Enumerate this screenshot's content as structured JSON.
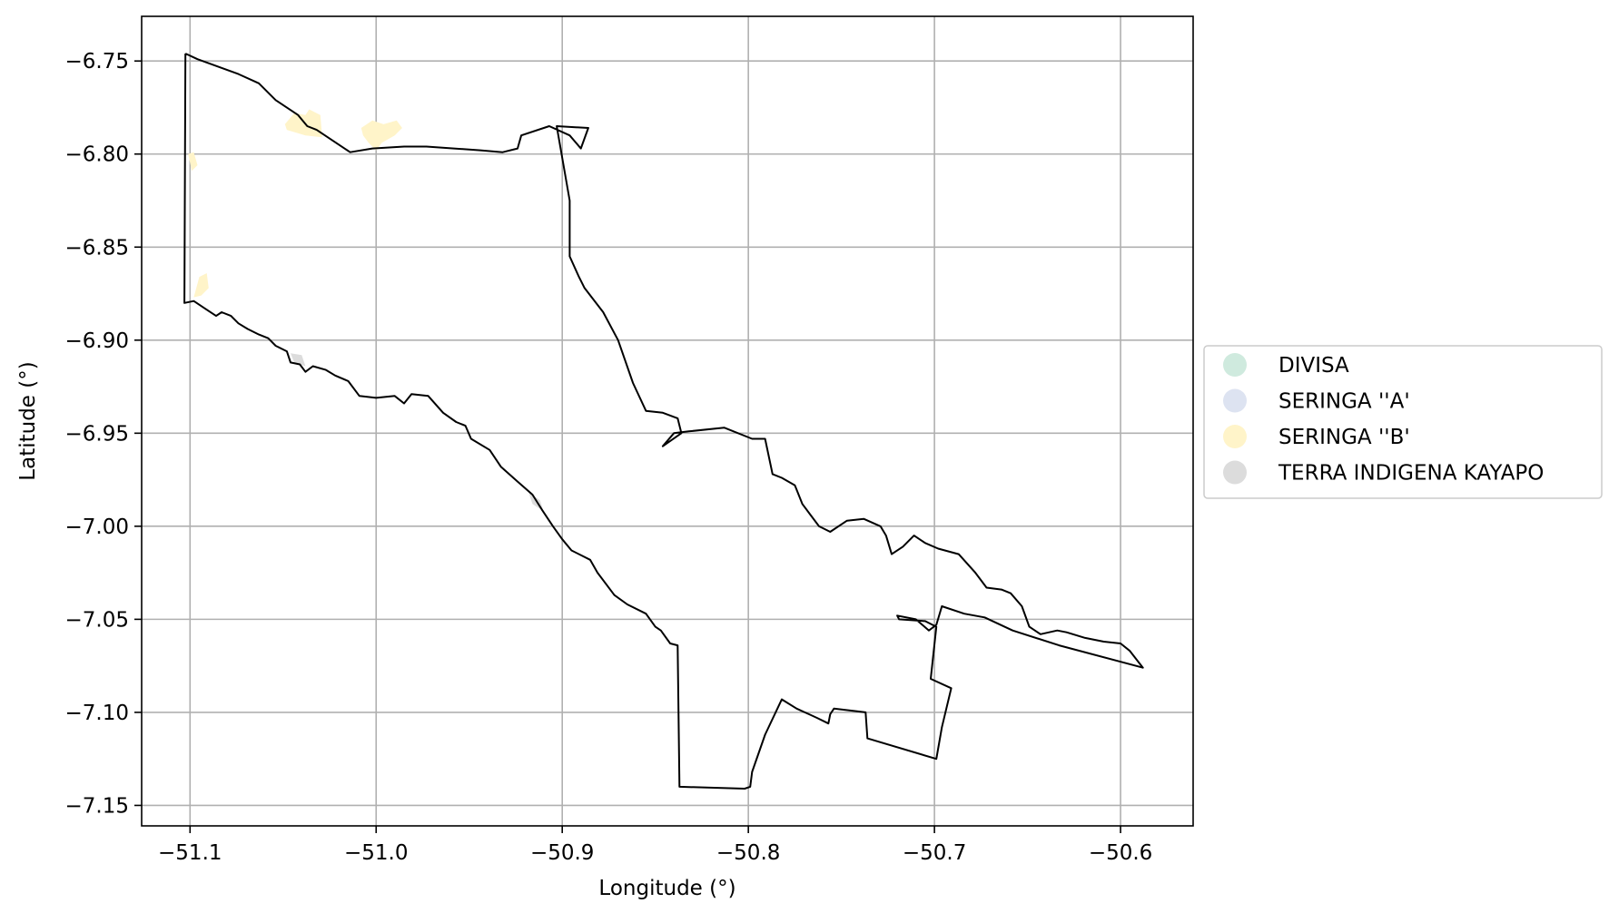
{
  "chart_data": {
    "type": "map",
    "xlabel": "Longitude (°)",
    "ylabel": "Latitude (°)",
    "xlim": [
      -51.126,
      -50.561
    ],
    "ylim": [
      -7.161,
      -6.726
    ],
    "grid": true,
    "legend_placement": "right",
    "x_ticks": [
      -51.1,
      -51.0,
      -50.9,
      -50.8,
      -50.7,
      -50.6
    ],
    "x_tick_labels": [
      "−51.1",
      "−51.0",
      "−50.9",
      "−50.8",
      "−50.7",
      "−50.6"
    ],
    "y_ticks": [
      -6.75,
      -6.8,
      -6.85,
      -6.9,
      -6.95,
      -7.0,
      -7.05,
      -7.1,
      -7.15
    ],
    "y_tick_labels": [
      "−6.75",
      "−6.80",
      "−6.85",
      "−6.90",
      "−6.95",
      "−7.00",
      "−7.05",
      "−7.10",
      "−7.15"
    ],
    "legend": [
      {
        "label": "DIVISA",
        "color": "#cfeade"
      },
      {
        "label": "SERINGA ''A'",
        "color": "#dde3f1"
      },
      {
        "label": "SERINGA ''B'",
        "color": "#fff4c9"
      },
      {
        "label": "TERRA INDIGENA KAYAPO",
        "color": "#dcdcdc"
      }
    ],
    "boundary": {
      "color": "#000000",
      "points": [
        [
          -51.1025,
          -6.746
        ],
        [
          -51.096,
          -6.749
        ],
        [
          -51.074,
          -6.757
        ],
        [
          -51.063,
          -6.762
        ],
        [
          -51.054,
          -6.771
        ],
        [
          -51.042,
          -6.779
        ],
        [
          -51.037,
          -6.785
        ],
        [
          -51.032,
          -6.787
        ],
        [
          -51.014,
          -6.799
        ],
        [
          -51.002,
          -6.797
        ],
        [
          -50.985,
          -6.796
        ],
        [
          -50.973,
          -6.796
        ],
        [
          -50.944,
          -6.798
        ],
        [
          -50.932,
          -6.799
        ],
        [
          -50.924,
          -6.797
        ],
        [
          -50.922,
          -6.79
        ],
        [
          -50.907,
          -6.785
        ],
        [
          -50.896,
          -6.79
        ],
        [
          -50.89,
          -6.797
        ],
        [
          -50.886,
          -6.786
        ],
        [
          -50.903,
          -6.785
        ],
        [
          -50.896,
          -6.825
        ],
        [
          -50.896,
          -6.855
        ],
        [
          -50.891,
          -6.866
        ],
        [
          -50.888,
          -6.872
        ],
        [
          -50.878,
          -6.885
        ],
        [
          -50.87,
          -6.9
        ],
        [
          -50.862,
          -6.923
        ],
        [
          -50.855,
          -6.938
        ],
        [
          -50.846,
          -6.939
        ],
        [
          -50.838,
          -6.942
        ],
        [
          -50.836,
          -6.95
        ],
        [
          -50.846,
          -6.957
        ],
        [
          -50.84,
          -6.95
        ],
        [
          -50.832,
          -6.949
        ],
        [
          -50.813,
          -6.947
        ],
        [
          -50.798,
          -6.953
        ],
        [
          -50.791,
          -6.953
        ],
        [
          -50.787,
          -6.972
        ],
        [
          -50.782,
          -6.974
        ],
        [
          -50.775,
          -6.978
        ],
        [
          -50.771,
          -6.988
        ],
        [
          -50.762,
          -7.0
        ],
        [
          -50.756,
          -7.003
        ],
        [
          -50.747,
          -6.997
        ],
        [
          -50.738,
          -6.996
        ],
        [
          -50.729,
          -7.0
        ],
        [
          -50.726,
          -7.005
        ],
        [
          -50.723,
          -7.015
        ],
        [
          -50.717,
          -7.011
        ],
        [
          -50.711,
          -7.005
        ],
        [
          -50.705,
          -7.009
        ],
        [
          -50.698,
          -7.012
        ],
        [
          -50.687,
          -7.015
        ],
        [
          -50.678,
          -7.025
        ],
        [
          -50.672,
          -7.033
        ],
        [
          -50.664,
          -7.034
        ],
        [
          -50.659,
          -7.036
        ],
        [
          -50.653,
          -7.043
        ],
        [
          -50.649,
          -7.054
        ],
        [
          -50.643,
          -7.058
        ],
        [
          -50.634,
          -7.056
        ],
        [
          -50.629,
          -7.057
        ],
        [
          -50.619,
          -7.06
        ],
        [
          -50.609,
          -7.062
        ],
        [
          -50.6,
          -7.063
        ],
        [
          -50.595,
          -7.067
        ],
        [
          -50.588,
          -7.076
        ],
        [
          -50.633,
          -7.064
        ],
        [
          -50.658,
          -7.056
        ],
        [
          -50.673,
          -7.049
        ],
        [
          -50.684,
          -7.047
        ],
        [
          -50.696,
          -7.043
        ],
        [
          -50.699,
          -7.053
        ],
        [
          -50.703,
          -7.056
        ],
        [
          -50.71,
          -7.05
        ],
        [
          -50.72,
          -7.048
        ],
        [
          -50.719,
          -7.05
        ],
        [
          -50.705,
          -7.051
        ],
        [
          -50.699,
          -7.054
        ],
        [
          -50.702,
          -7.082
        ],
        [
          -50.691,
          -7.087
        ],
        [
          -50.696,
          -7.108
        ],
        [
          -50.699,
          -7.125
        ],
        [
          -50.736,
          -7.114
        ],
        [
          -50.737,
          -7.1
        ],
        [
          -50.754,
          -7.098
        ],
        [
          -50.756,
          -7.101
        ],
        [
          -50.757,
          -7.106
        ],
        [
          -50.763,
          -7.103
        ],
        [
          -50.774,
          -7.098
        ],
        [
          -50.782,
          -7.093
        ],
        [
          -50.791,
          -7.112
        ],
        [
          -50.798,
          -7.132
        ],
        [
          -50.799,
          -7.14
        ],
        [
          -50.802,
          -7.141
        ],
        [
          -50.837,
          -7.14
        ],
        [
          -50.838,
          -7.064
        ],
        [
          -50.842,
          -7.063
        ],
        [
          -50.847,
          -7.056
        ],
        [
          -50.85,
          -7.054
        ],
        [
          -50.855,
          -7.047
        ],
        [
          -50.865,
          -7.042
        ],
        [
          -50.872,
          -7.037
        ],
        [
          -50.881,
          -7.025
        ],
        [
          -50.885,
          -7.018
        ],
        [
          -50.895,
          -7.013
        ],
        [
          -50.9,
          -7.007
        ],
        [
          -50.905,
          -7.0
        ],
        [
          -50.911,
          -6.991
        ],
        [
          -50.916,
          -6.983
        ],
        [
          -50.924,
          -6.976
        ],
        [
          -50.933,
          -6.968
        ],
        [
          -50.939,
          -6.959
        ],
        [
          -50.949,
          -6.953
        ],
        [
          -50.952,
          -6.946
        ],
        [
          -50.957,
          -6.944
        ],
        [
          -50.964,
          -6.939
        ],
        [
          -50.972,
          -6.93
        ],
        [
          -50.981,
          -6.929
        ],
        [
          -50.985,
          -6.934
        ],
        [
          -50.99,
          -6.93
        ],
        [
          -51.0,
          -6.931
        ],
        [
          -51.009,
          -6.93
        ],
        [
          -51.015,
          -6.922
        ],
        [
          -51.022,
          -6.919
        ],
        [
          -51.027,
          -6.916
        ],
        [
          -51.034,
          -6.914
        ],
        [
          -51.038,
          -6.917
        ],
        [
          -51.041,
          -6.913
        ],
        [
          -51.046,
          -6.912
        ],
        [
          -51.048,
          -6.906
        ],
        [
          -51.054,
          -6.903
        ],
        [
          -51.058,
          -6.899
        ],
        [
          -51.063,
          -6.897
        ],
        [
          -51.069,
          -6.894
        ],
        [
          -51.074,
          -6.891
        ],
        [
          -51.078,
          -6.887
        ],
        [
          -51.083,
          -6.885
        ],
        [
          -51.086,
          -6.887
        ],
        [
          -51.092,
          -6.883
        ],
        [
          -51.098,
          -6.879
        ],
        [
          -51.103,
          -6.88
        ],
        [
          -51.1025,
          -6.746
        ]
      ]
    },
    "regions": [
      {
        "legend": "SERINGA ''B'",
        "color": "#fff4c9",
        "points": [
          [
            -51.049,
            -6.784
          ],
          [
            -51.044,
            -6.778
          ],
          [
            -51.038,
            -6.779
          ],
          [
            -51.036,
            -6.776
          ],
          [
            -51.03,
            -6.779
          ],
          [
            -51.029,
            -6.791
          ],
          [
            -51.038,
            -6.79
          ],
          [
            -51.048,
            -6.787
          ]
        ]
      },
      {
        "legend": "SERINGA ''B'",
        "color": "#fff4c9",
        "points": [
          [
            -51.008,
            -6.786
          ],
          [
            -51.002,
            -6.782
          ],
          [
            -50.996,
            -6.784
          ],
          [
            -50.989,
            -6.782
          ],
          [
            -50.986,
            -6.786
          ],
          [
            -50.99,
            -6.79
          ],
          [
            -50.997,
            -6.794
          ],
          [
            -51.0,
            -6.798
          ],
          [
            -51.004,
            -6.794
          ],
          [
            -51.007,
            -6.79
          ]
        ]
      },
      {
        "legend": "SERINGA ''B'",
        "color": "#fff4c9",
        "points": [
          [
            -51.101,
            -6.8
          ],
          [
            -51.098,
            -6.799
          ],
          [
            -51.096,
            -6.806
          ],
          [
            -51.099,
            -6.809
          ]
        ]
      },
      {
        "legend": "SERINGA ''B'",
        "color": "#fff4c9",
        "points": [
          [
            -51.095,
            -6.866
          ],
          [
            -51.091,
            -6.864
          ],
          [
            -51.09,
            -6.872
          ],
          [
            -51.094,
            -6.876
          ],
          [
            -51.098,
            -6.877
          ]
        ]
      },
      {
        "legend": "TERRA INDIGENA KAYAPO",
        "color": "#dcdcdc",
        "points": [
          [
            -51.046,
            -6.907
          ],
          [
            -51.04,
            -6.908
          ],
          [
            -51.038,
            -6.914
          ],
          [
            -51.044,
            -6.912
          ]
        ]
      },
      {
        "legend": "TERRA INDIGENA KAYAPO",
        "color": "#dcdcdc",
        "points": [
          [
            -50.918,
            -6.982
          ],
          [
            -50.912,
            -6.986
          ],
          [
            -50.91,
            -6.992
          ],
          [
            -50.916,
            -6.988
          ]
        ]
      }
    ]
  }
}
